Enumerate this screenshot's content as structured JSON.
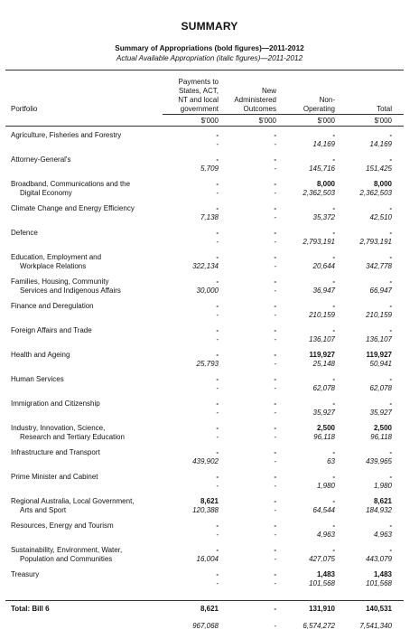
{
  "title": "SUMMARY",
  "subtitle_bold": "Summary of Appropriations (bold figures)—2011-2012",
  "subtitle_italic": "Actual Available Appropriation (italic figures)—2011-2012",
  "columns": {
    "portfolio": "Portfolio",
    "c1_lines": [
      "Payments to",
      "States, ACT,",
      "NT and local",
      "government"
    ],
    "c2_lines": [
      "New",
      "Administered",
      "Outcomes"
    ],
    "c3_lines": [
      "Non-",
      "Operating"
    ],
    "c4_lines": [
      "Total"
    ],
    "unit": "$'000"
  },
  "rows": [
    {
      "l1": "Agriculture, Fisheries and Forestry",
      "l2": "",
      "b": [
        "-",
        "-",
        "-",
        "-"
      ],
      "i": [
        "-",
        "-",
        "14,169",
        "14,169"
      ]
    },
    {
      "l1": "Attorney-General's",
      "l2": "",
      "b": [
        "-",
        "-",
        "-",
        "-"
      ],
      "i": [
        "5,709",
        "-",
        "145,716",
        "151,425"
      ]
    },
    {
      "l1": "Broadband, Communications and the",
      "l2": "Digital Economy",
      "b": [
        "-",
        "-",
        "8,000",
        "8,000"
      ],
      "i": [
        "-",
        "-",
        "2,362,503",
        "2,362,503"
      ]
    },
    {
      "l1": "Climate Change and Energy Efficiency",
      "l2": "",
      "b": [
        "-",
        "-",
        "-",
        "-"
      ],
      "i": [
        "7,138",
        "-",
        "35,372",
        "42,510"
      ]
    },
    {
      "l1": "Defence",
      "l2": "",
      "b": [
        "-",
        "-",
        "-",
        "-"
      ],
      "i": [
        "-",
        "-",
        "2,793,191",
        "2,793,191"
      ]
    },
    {
      "l1": "Education, Employment and",
      "l2": "Workplace Relations",
      "b": [
        "-",
        "-",
        "-",
        "-"
      ],
      "i": [
        "322,134",
        "-",
        "20,644",
        "342,778"
      ]
    },
    {
      "l1": "Families, Housing, Community",
      "l2": "Services and Indigenous Affairs",
      "b": [
        "-",
        "-",
        "-",
        "-"
      ],
      "i": [
        "30,000",
        "-",
        "36,947",
        "66,947"
      ]
    },
    {
      "l1": "Finance and Deregulation",
      "l2": "",
      "b": [
        "-",
        "-",
        "-",
        "-"
      ],
      "i": [
        "-",
        "-",
        "210,159",
        "210,159"
      ]
    },
    {
      "l1": "Foreign Affairs and Trade",
      "l2": "",
      "b": [
        "-",
        "-",
        "-",
        "-"
      ],
      "i": [
        "-",
        "-",
        "136,107",
        "136,107"
      ]
    },
    {
      "l1": "Health and Ageing",
      "l2": "",
      "b": [
        "-",
        "-",
        "119,927",
        "119,927"
      ],
      "i": [
        "25,793",
        "-",
        "25,148",
        "50,941"
      ]
    },
    {
      "l1": "Human Services",
      "l2": "",
      "b": [
        "-",
        "-",
        "-",
        "-"
      ],
      "i": [
        "-",
        "-",
        "62,078",
        "62,078"
      ]
    },
    {
      "l1": "Immigration and Citizenship",
      "l2": "",
      "b": [
        "-",
        "-",
        "-",
        "-"
      ],
      "i": [
        "-",
        "-",
        "35,927",
        "35,927"
      ]
    },
    {
      "l1": "Industry, Innovation, Science,",
      "l2": "Research and Tertiary Education",
      "b": [
        "-",
        "-",
        "2,500",
        "2,500"
      ],
      "i": [
        "-",
        "-",
        "96,118",
        "96,118"
      ]
    },
    {
      "l1": "Infrastructure and Transport",
      "l2": "",
      "b": [
        "-",
        "-",
        "-",
        "-"
      ],
      "i": [
        "439,902",
        "-",
        "63",
        "439,965"
      ]
    },
    {
      "l1": "Prime Minister and Cabinet",
      "l2": "",
      "b": [
        "-",
        "-",
        "-",
        "-"
      ],
      "i": [
        "-",
        "-",
        "1,980",
        "1,980"
      ]
    },
    {
      "l1": "Regional Australia, Local Government,",
      "l2": "Arts and Sport",
      "b": [
        "8,621",
        "-",
        "-",
        "8,621"
      ],
      "i": [
        "120,388",
        "-",
        "64,544",
        "184,932"
      ]
    },
    {
      "l1": "Resources, Energy and Tourism",
      "l2": "",
      "b": [
        "-",
        "-",
        "-",
        "-"
      ],
      "i": [
        "-",
        "-",
        "4,963",
        "4,963"
      ]
    },
    {
      "l1": "Sustainability, Environment, Water,",
      "l2": "Population and Communities",
      "b": [
        "-",
        "-",
        "-",
        "-"
      ],
      "i": [
        "16,004",
        "-",
        "427,075",
        "443,079"
      ]
    },
    {
      "l1": "Treasury",
      "l2": "",
      "b": [
        "-",
        "-",
        "1,483",
        "1,483"
      ],
      "i": [
        "-",
        "-",
        "101,568",
        "101,568"
      ]
    }
  ],
  "total": {
    "label": "Total: Bill 6",
    "b": [
      "8,621",
      "-",
      "131,910",
      "140,531"
    ],
    "i": [
      "967,068",
      "-",
      "6,574,272",
      "7,541,340"
    ]
  }
}
